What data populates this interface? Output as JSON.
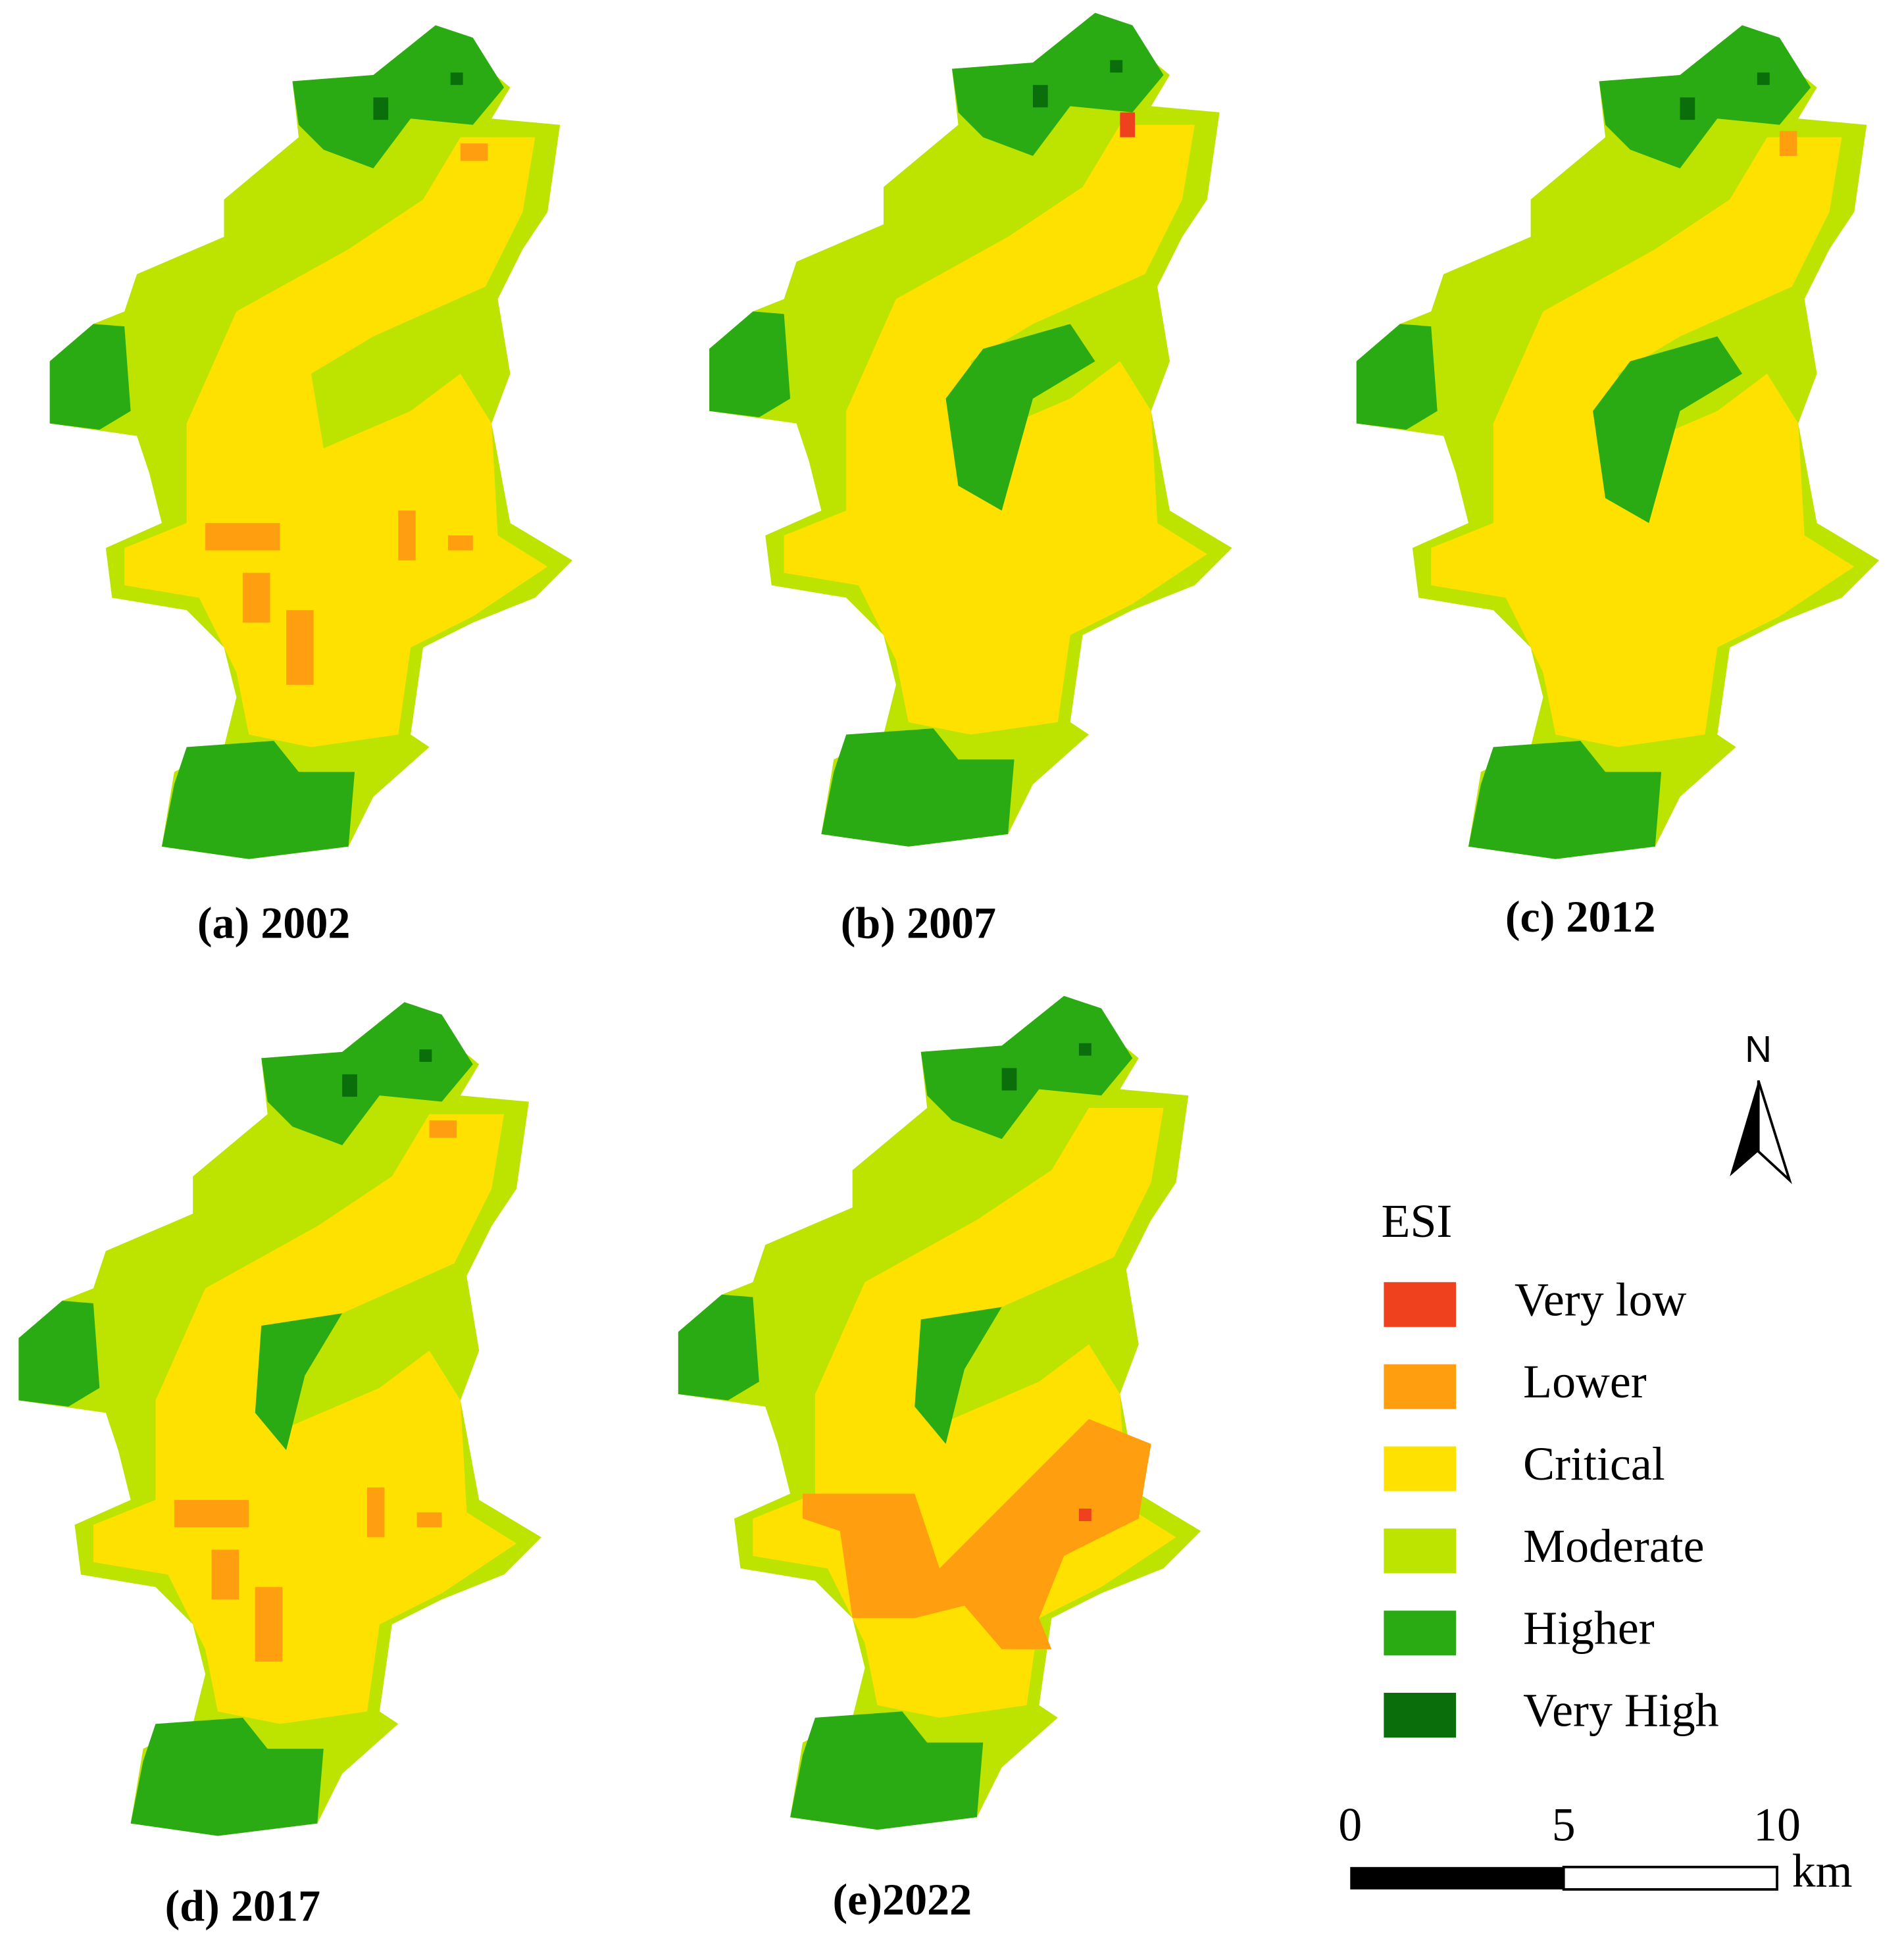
{
  "panels": [
    {
      "label": "(a) 2002"
    },
    {
      "label": "(b) 2007"
    },
    {
      "label": "(c) 2012"
    },
    {
      "label": "(d) 2017"
    },
    {
      "label": "(e)2022"
    }
  ],
  "legend": {
    "title": "ESI",
    "items": [
      {
        "label": "Very low",
        "color": "#f0411e"
      },
      {
        "label": "Lower",
        "color": "#ff9f10"
      },
      {
        "label": "Critical",
        "color": "#ffe100"
      },
      {
        "label": "Moderate",
        "color": "#bde400"
      },
      {
        "label": "Higher",
        "color": "#2aab14"
      },
      {
        "label": "Very High",
        "color": "#0a6e0a"
      }
    ]
  },
  "north": "N",
  "scale_bar": {
    "ticks": [
      0,
      5,
      10
    ],
    "unit": "km"
  }
}
